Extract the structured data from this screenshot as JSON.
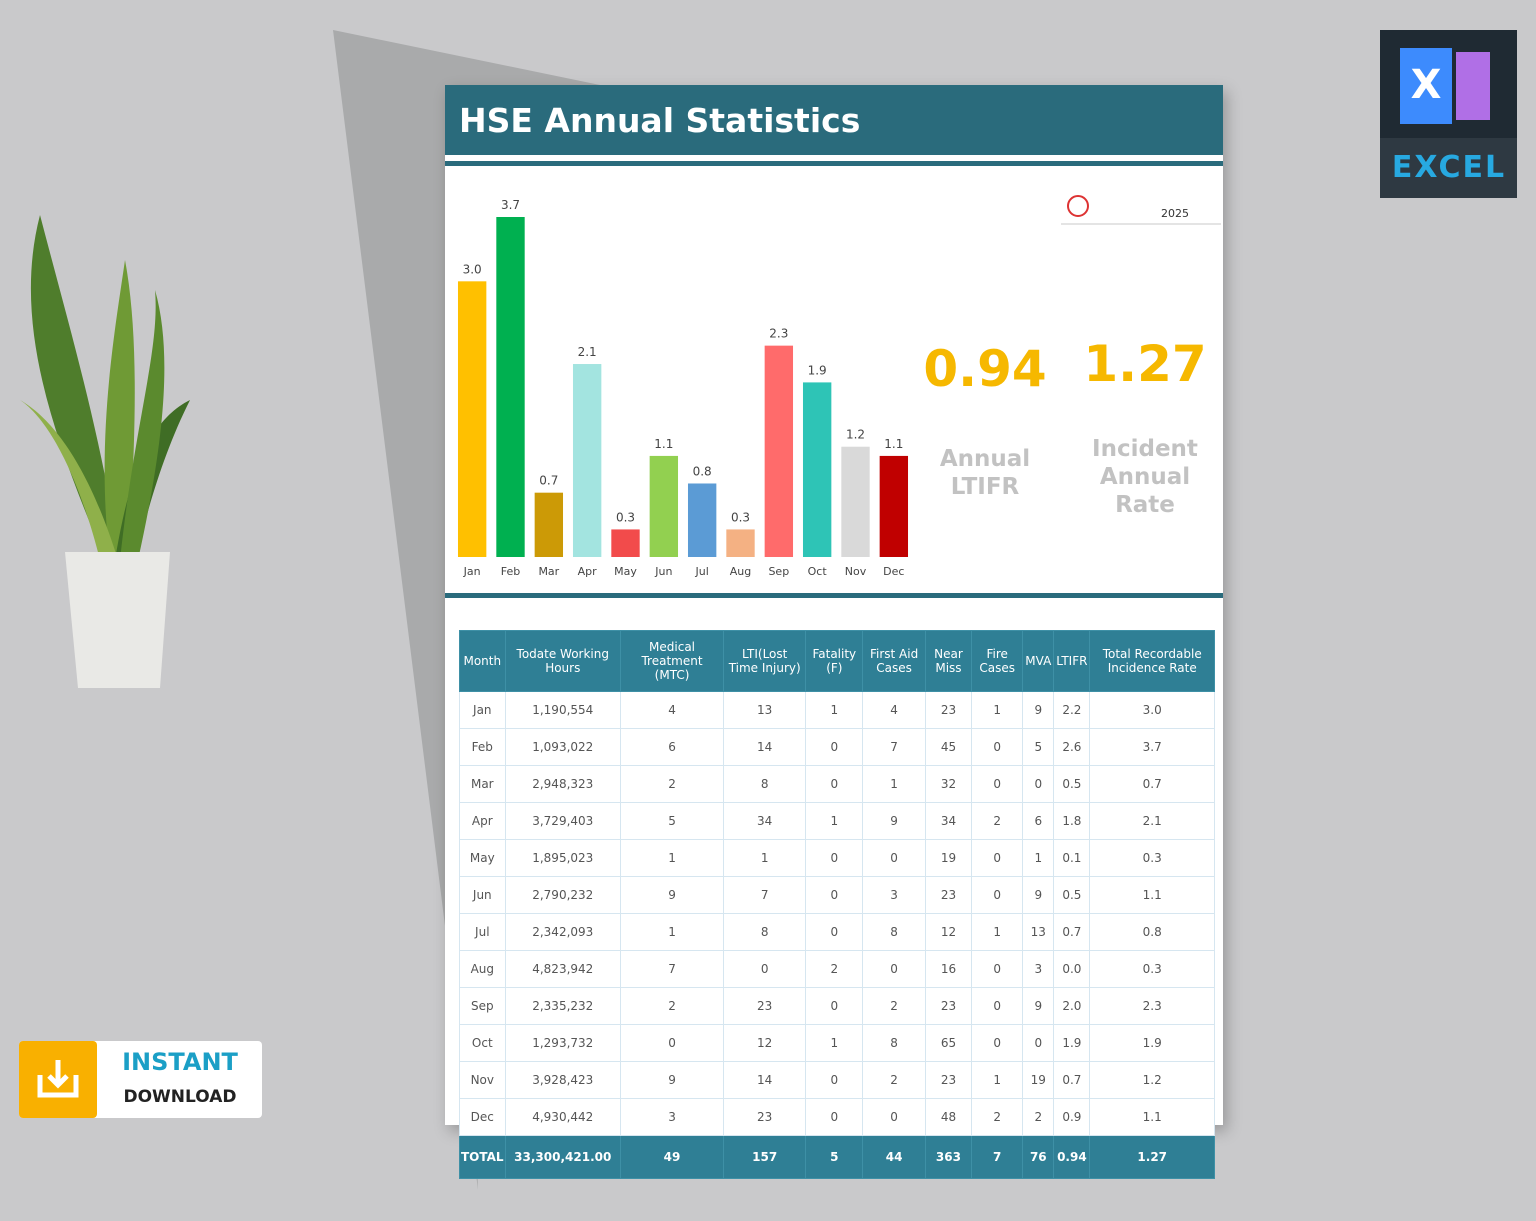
{
  "header": {
    "title": "HSE Annual Statistics",
    "year": "2025"
  },
  "chart_data": {
    "type": "bar",
    "categories": [
      "Jan",
      "Feb",
      "Mar",
      "Apr",
      "May",
      "Jun",
      "Jul",
      "Aug",
      "Sep",
      "Oct",
      "Nov",
      "Dec"
    ],
    "values": [
      3.0,
      3.7,
      0.7,
      2.1,
      0.3,
      1.1,
      0.8,
      0.3,
      2.3,
      1.9,
      1.2,
      1.1
    ],
    "value_labels": [
      "3.0",
      "3.7",
      "0.7",
      "2.1",
      "0.3",
      "1.1",
      "0.8",
      "0.3",
      "2.3",
      "1.9",
      "1.2",
      "1.1"
    ],
    "colors": [
      "#ffc000",
      "#00b050",
      "#cc9a06",
      "#a3e4e0",
      "#f24b4b",
      "#92d050",
      "#5b9bd5",
      "#f4b183",
      "#ff6b6b",
      "#2ec4b6",
      "#d9d9d9",
      "#c00000"
    ]
  },
  "kpis": [
    {
      "value": "0.94",
      "label": "Annual LTIFR"
    },
    {
      "value": "1.27",
      "label": "Incident Annual Rate"
    }
  ],
  "table": {
    "headers": [
      "Month",
      "Todate Working Hours",
      "Medical Treatment (MTC)",
      "LTI(Lost Time Injury)",
      "Fatality (F)",
      "First Aid Cases",
      "Near Miss",
      "Fire Cases",
      "MVA",
      "LTIFR",
      "Total Recordable Incidence Rate"
    ],
    "rows": [
      [
        "Jan",
        "1,190,554",
        "4",
        "13",
        "1",
        "4",
        "23",
        "1",
        "9",
        "2.2",
        "3.0"
      ],
      [
        "Feb",
        "1,093,022",
        "6",
        "14",
        "0",
        "7",
        "45",
        "0",
        "5",
        "2.6",
        "3.7"
      ],
      [
        "Mar",
        "2,948,323",
        "2",
        "8",
        "0",
        "1",
        "32",
        "0",
        "0",
        "0.5",
        "0.7"
      ],
      [
        "Apr",
        "3,729,403",
        "5",
        "34",
        "1",
        "9",
        "34",
        "2",
        "6",
        "1.8",
        "2.1"
      ],
      [
        "May",
        "1,895,023",
        "1",
        "1",
        "0",
        "0",
        "19",
        "0",
        "1",
        "0.1",
        "0.3"
      ],
      [
        "Jun",
        "2,790,232",
        "9",
        "7",
        "0",
        "3",
        "23",
        "0",
        "9",
        "0.5",
        "1.1"
      ],
      [
        "Jul",
        "2,342,093",
        "1",
        "8",
        "0",
        "8",
        "12",
        "1",
        "13",
        "0.7",
        "0.8"
      ],
      [
        "Aug",
        "4,823,942",
        "7",
        "0",
        "2",
        "0",
        "16",
        "0",
        "3",
        "0.0",
        "0.3"
      ],
      [
        "Sep",
        "2,335,232",
        "2",
        "23",
        "0",
        "2",
        "23",
        "0",
        "9",
        "2.0",
        "2.3"
      ],
      [
        "Oct",
        "1,293,732",
        "0",
        "12",
        "1",
        "8",
        "65",
        "0",
        "0",
        "1.9",
        "1.9"
      ],
      [
        "Nov",
        "3,928,423",
        "9",
        "14",
        "0",
        "2",
        "23",
        "1",
        "19",
        "0.7",
        "1.2"
      ],
      [
        "Dec",
        "4,930,442",
        "3",
        "23",
        "0",
        "0",
        "48",
        "2",
        "2",
        "0.9",
        "1.1"
      ]
    ],
    "total": [
      "TOTAL",
      "33,300,421.00",
      "49",
      "157",
      "5",
      "44",
      "363",
      "7",
      "76",
      "0.94",
      "1.27"
    ]
  },
  "badges": {
    "app": "EXCEL",
    "app_letter": "X",
    "download_top": "INSTANT",
    "download_bottom": "DOWNLOAD"
  }
}
